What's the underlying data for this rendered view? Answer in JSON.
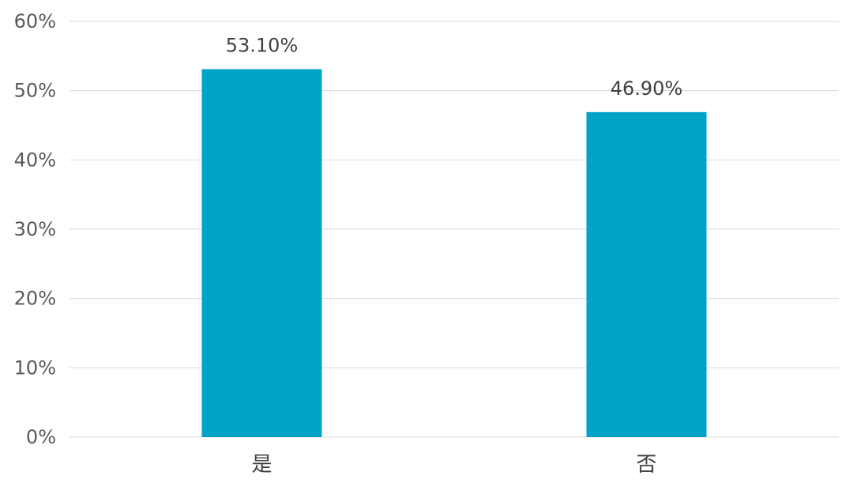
{
  "chart_data": {
    "type": "bar",
    "categories": [
      "是",
      "否"
    ],
    "values": [
      53.1,
      46.9
    ],
    "data_labels": [
      "53.10%",
      "46.90%"
    ],
    "ylim": [
      0,
      60
    ],
    "yticks": [
      0,
      10,
      20,
      30,
      40,
      50,
      60
    ],
    "ytick_labels": [
      "0%",
      "10%",
      "20%",
      "30%",
      "40%",
      "50%",
      "60%"
    ],
    "title": "",
    "xlabel": "",
    "ylabel": "",
    "grid": true,
    "legend": "none",
    "bar_color": "#00A3C8"
  }
}
